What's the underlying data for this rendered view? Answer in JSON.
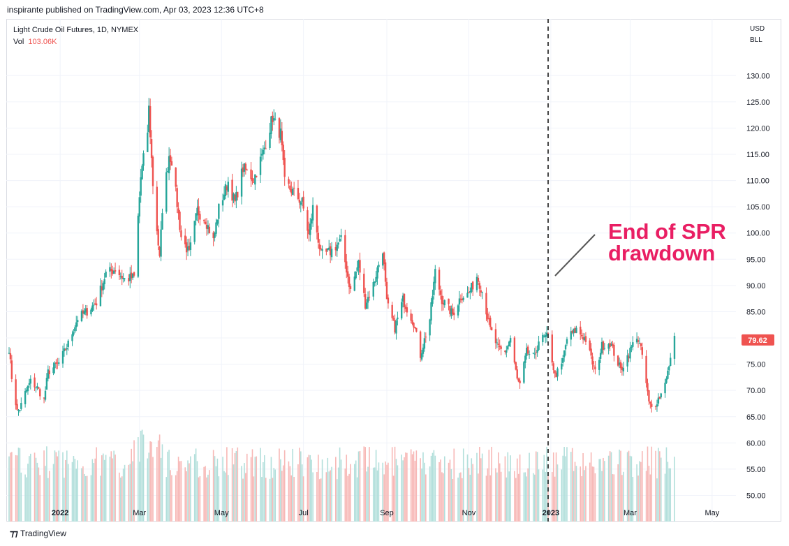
{
  "header": {
    "published": "inspirante published on TradingView.com, Apr 03, 2023 12:36 UTC+8"
  },
  "legend": {
    "symbol": "Light Crude Oil Futures, 1D, NYMEX",
    "vol_label": "Vol",
    "vol_value": "103.06K"
  },
  "price_axis": {
    "currency": "USD",
    "unit": "BLL"
  },
  "last_price": {
    "label": "79.62",
    "value": 79.62,
    "color": "#ef5350"
  },
  "footer": {
    "logo_text": "TradingView",
    "logo_icon": "tradingview-logo-icon"
  },
  "annotation": {
    "line1": "End of SPR",
    "line2": "drawdown",
    "color": "#e91e63"
  },
  "chart_data": {
    "type": "candlestick",
    "ylim": [
      45,
      135
    ],
    "grid": true,
    "y_ticks": [
      "50.00",
      "55.00",
      "60.00",
      "65.00",
      "70.00",
      "75.00",
      "80.00",
      "85.00",
      "90.00",
      "95.00",
      "100.00",
      "105.00",
      "110.00",
      "115.00",
      "120.00",
      "125.00",
      "130.00"
    ],
    "x_ticks": [
      {
        "label": "2022",
        "date": "2022-01-01",
        "bold": true
      },
      {
        "label": "Mar",
        "date": "2022-03-01"
      },
      {
        "label": "May",
        "date": "2022-05-01"
      },
      {
        "label": "Jul",
        "date": "2022-07-01"
      },
      {
        "label": "Sep",
        "date": "2022-09-01"
      },
      {
        "label": "Nov",
        "date": "2022-11-01"
      },
      {
        "label": "2023",
        "date": "2023-01-01",
        "bold": true
      },
      {
        "label": "Mar",
        "date": "2023-03-01"
      },
      {
        "label": "May",
        "date": "2023-05-01"
      }
    ],
    "marker_date": "2022-12-30",
    "close_path": [
      [
        "2021-11-24",
        78
      ],
      [
        "2021-11-26",
        72.5
      ],
      [
        "2021-11-30",
        66
      ],
      [
        "2021-12-02",
        66.5
      ],
      [
        "2021-12-06",
        69.5
      ],
      [
        "2021-12-10",
        71.7
      ],
      [
        "2021-12-15",
        70.5
      ],
      [
        "2021-12-20",
        68.2
      ],
      [
        "2021-12-23",
        73.5
      ],
      [
        "2021-12-31",
        75.2
      ],
      [
        "2022-01-07",
        78.9
      ],
      [
        "2022-01-14",
        83.8
      ],
      [
        "2022-01-21",
        85.1
      ],
      [
        "2022-01-28",
        86.8
      ],
      [
        "2022-02-04",
        92.3
      ],
      [
        "2022-02-11",
        93.1
      ],
      [
        "2022-02-18",
        91.1
      ],
      [
        "2022-02-25",
        91.6
      ],
      [
        "2022-03-02",
        110.6
      ],
      [
        "2022-03-07",
        119.4
      ],
      [
        "2022-03-08",
        123.7
      ],
      [
        "2022-03-11",
        109.3
      ],
      [
        "2022-03-16",
        95
      ],
      [
        "2022-03-18",
        104.7
      ],
      [
        "2022-03-23",
        114.9
      ],
      [
        "2022-03-25",
        113.9
      ],
      [
        "2022-04-01",
        99.3
      ],
      [
        "2022-04-07",
        96
      ],
      [
        "2022-04-13",
        104.2
      ],
      [
        "2022-04-19",
        102.6
      ],
      [
        "2022-04-25",
        98.5
      ],
      [
        "2022-04-29",
        104.7
      ],
      [
        "2022-05-06",
        109.8
      ],
      [
        "2022-05-11",
        105.7
      ],
      [
        "2022-05-17",
        112.4
      ],
      [
        "2022-05-25",
        110.3
      ],
      [
        "2022-06-01",
        115.3
      ],
      [
        "2022-06-08",
        122.1
      ],
      [
        "2022-06-10",
        120.7
      ],
      [
        "2022-06-14",
        118.9
      ],
      [
        "2022-06-17",
        109.6
      ],
      [
        "2022-06-24",
        107.6
      ],
      [
        "2022-06-30",
        105.8
      ],
      [
        "2022-07-05",
        99.5
      ],
      [
        "2022-07-08",
        104.8
      ],
      [
        "2022-07-14",
        95.8
      ],
      [
        "2022-07-21",
        96.4
      ],
      [
        "2022-07-29",
        98.6
      ],
      [
        "2022-08-05",
        89
      ],
      [
        "2022-08-11",
        94.3
      ],
      [
        "2022-08-16",
        86.5
      ],
      [
        "2022-08-22",
        90.2
      ],
      [
        "2022-08-29",
        97
      ],
      [
        "2022-09-01",
        86.6
      ],
      [
        "2022-09-07",
        81.9
      ],
      [
        "2022-09-13",
        87.3
      ],
      [
        "2022-09-21",
        82.9
      ],
      [
        "2022-09-26",
        76.7
      ],
      [
        "2022-10-03",
        83.6
      ],
      [
        "2022-10-07",
        92.6
      ],
      [
        "2022-10-12",
        87.3
      ],
      [
        "2022-10-20",
        84.5
      ],
      [
        "2022-10-26",
        87.9
      ],
      [
        "2022-11-01",
        88.4
      ],
      [
        "2022-11-07",
        91.8
      ],
      [
        "2022-11-11",
        88.9
      ],
      [
        "2022-11-17",
        81.6
      ],
      [
        "2022-11-23",
        77.9
      ],
      [
        "2022-11-28",
        77.2
      ],
      [
        "2022-12-02",
        80
      ],
      [
        "2022-12-07",
        72
      ],
      [
        "2022-12-09",
        71
      ],
      [
        "2022-12-14",
        77.3
      ],
      [
        "2022-12-20",
        76.2
      ],
      [
        "2022-12-23",
        79.6
      ],
      [
        "2022-12-30",
        80.3
      ],
      [
        "2023-01-04",
        72.8
      ],
      [
        "2023-01-09",
        74.6
      ],
      [
        "2023-01-13",
        79.9
      ],
      [
        "2023-01-20",
        81.6
      ],
      [
        "2023-01-27",
        79.7
      ],
      [
        "2023-02-03",
        73.4
      ],
      [
        "2023-02-08",
        78.5
      ],
      [
        "2023-02-14",
        79.1
      ],
      [
        "2023-02-22",
        73.9
      ],
      [
        "2023-02-28",
        77
      ],
      [
        "2023-03-06",
        80.5
      ],
      [
        "2023-03-10",
        76.7
      ],
      [
        "2023-03-15",
        67.6
      ],
      [
        "2023-03-17",
        66.7
      ],
      [
        "2023-03-20",
        67.6
      ],
      [
        "2023-03-24",
        69.3
      ],
      [
        "2023-03-30",
        74.4
      ],
      [
        "2023-03-31",
        75.7
      ],
      [
        "2023-04-03",
        80.4
      ]
    ],
    "volume_scale": "relative, max 1.0",
    "series": [
      {
        "name": "Light Crude Oil Futures, 1D, NYMEX",
        "role": "price",
        "up_color": "#26a69a",
        "down_color": "#ef5350"
      },
      {
        "name": "Vol",
        "role": "volume",
        "last_value": "103.06K",
        "up_color": "#b2dfdb",
        "down_color": "#f7b8b6"
      }
    ]
  }
}
